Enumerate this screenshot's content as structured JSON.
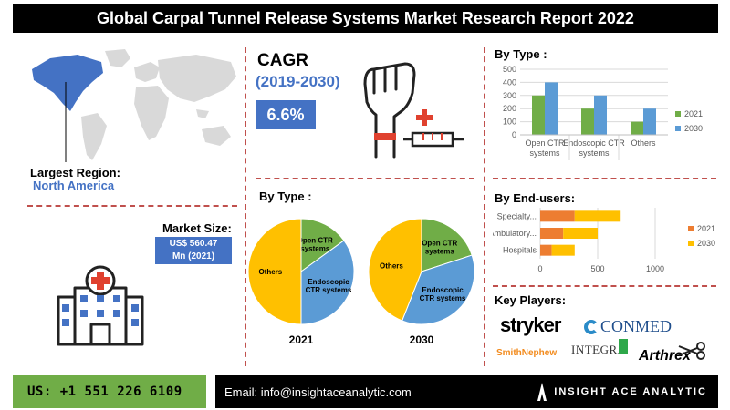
{
  "header": {
    "title": "Global Carpal Tunnel Release Systems Market Research Report 2022"
  },
  "region": {
    "label": "Largest Region:",
    "value": "North America"
  },
  "cagr": {
    "title": "CAGR",
    "period": "(2019-2030)",
    "value": "6.6%"
  },
  "market_size": {
    "label": "Market Size:",
    "line1": "US$ 560.47",
    "line2": "Mn (2021)"
  },
  "sections": {
    "by_type_pie": "By Type :",
    "by_type_bar": "By Type :",
    "by_end_users": "By End-users:",
    "key_players": "Key Players:"
  },
  "key_players": [
    "stryker",
    "CONMED",
    "SmithNephew",
    "INTEGRA",
    "Arthrex"
  ],
  "footer": {
    "phone": "US: +1 551 226 6109",
    "email": "Email: info@insightaceanalytic.com",
    "brand": "INSIGHT ACE ANALYTIC"
  },
  "colors": {
    "blue": "#4472c4",
    "green": "#70ad47",
    "orange": "#ed7d31",
    "gold": "#ffc000",
    "accent_red": "#c0504d"
  },
  "chart_data": [
    {
      "type": "bar",
      "title": "By Type :",
      "categories": [
        "Open CTR systems",
        "Endoscopic CTR systems",
        "Others"
      ],
      "series": [
        {
          "name": "2021",
          "values": [
            300,
            200,
            100
          ],
          "color": "#70ad47"
        },
        {
          "name": "2030",
          "values": [
            400,
            300,
            200
          ],
          "color": "#5b9bd5"
        }
      ],
      "ylim": [
        0,
        500
      ],
      "yticks": [
        0,
        100,
        200,
        300,
        400,
        500
      ],
      "legend": "right",
      "grid": true
    },
    {
      "type": "bar",
      "orientation": "horizontal",
      "stacked": true,
      "title": "By End-users:",
      "categories": [
        "Specialty...",
        "Ambulatory...",
        "Hospitals"
      ],
      "series": [
        {
          "name": "2021",
          "values": [
            300,
            200,
            100
          ],
          "color": "#ed7d31"
        },
        {
          "name": "2030",
          "values": [
            400,
            300,
            200
          ],
          "color": "#ffc000"
        }
      ],
      "xlim": [
        0,
        1000
      ],
      "xticks": [
        0,
        500,
        1000
      ],
      "legend": "right",
      "grid": true
    },
    {
      "type": "pie",
      "title": "2021",
      "slices": [
        {
          "label": "Open CTR systems",
          "value": 15,
          "color": "#70ad47"
        },
        {
          "label": "Endoscopic CTR systems",
          "value": 35,
          "color": "#5b9bd5"
        },
        {
          "label": "Others",
          "value": 50,
          "color": "#ffc000"
        }
      ]
    },
    {
      "type": "pie",
      "title": "2030",
      "slices": [
        {
          "label": "Open CTR systems",
          "value": 20,
          "color": "#70ad47"
        },
        {
          "label": "Endoscopic CTR systems",
          "value": 36,
          "color": "#5b9bd5"
        },
        {
          "label": "Others",
          "value": 44,
          "color": "#ffc000"
        }
      ]
    }
  ]
}
